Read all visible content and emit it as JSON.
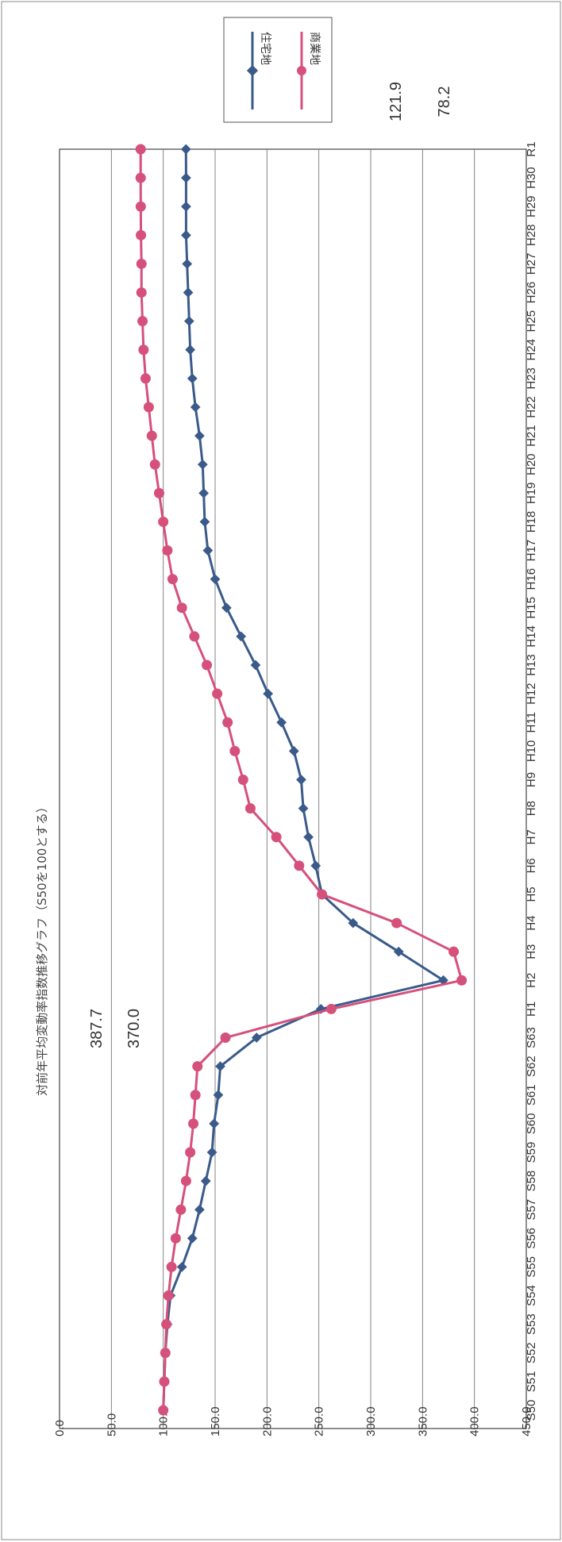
{
  "chart_data": {
    "type": "line",
    "title": "対前年平均変動率指数推移グラフ（S50を100とする）",
    "x": [
      "S50",
      "S51",
      "S52",
      "S53",
      "S54",
      "S55",
      "S56",
      "S57",
      "S58",
      "S59",
      "S60",
      "S61",
      "S62",
      "S63",
      "H1",
      "H2",
      "H3",
      "H4",
      "H5",
      "H6",
      "H7",
      "H8",
      "H9",
      "H10",
      "H11",
      "H12",
      "H13",
      "H14",
      "H15",
      "H16",
      "H17",
      "H18",
      "H19",
      "H20",
      "H21",
      "H22",
      "H23",
      "H24",
      "H25",
      "H26",
      "H27",
      "H28",
      "H29",
      "H30",
      "R1"
    ],
    "ylim": [
      0,
      450
    ],
    "yticks": [
      "0.0",
      "50.0",
      "100.0",
      "150.0",
      "200.0",
      "250.0",
      "300.0",
      "350.0",
      "400.0",
      "450.0"
    ],
    "grid": true,
    "legend_position": "top-right",
    "series": [
      {
        "name": "住宅地",
        "color": "#3a5a8a",
        "marker": "diamond",
        "values": [
          100,
          101,
          102,
          104,
          107,
          118,
          128,
          135,
          141,
          147,
          149,
          153,
          155,
          190,
          252,
          370,
          327,
          283,
          253,
          247,
          240,
          235,
          233,
          226,
          214,
          201,
          189,
          175,
          161,
          150,
          143,
          140,
          139,
          138,
          135,
          131,
          128,
          126,
          125,
          124,
          123,
          122,
          122,
          122,
          121.9
        ]
      },
      {
        "name": "商業地",
        "color": "#d5507a",
        "marker": "circle",
        "values": [
          100,
          101,
          102,
          103,
          105,
          108,
          112,
          117,
          122,
          126,
          129,
          131,
          133,
          160,
          262,
          387.7,
          380,
          325,
          253,
          231,
          209,
          184,
          177,
          169,
          162,
          152,
          142,
          130,
          118,
          109,
          104,
          100,
          96,
          92,
          89,
          86,
          83,
          81,
          80,
          79,
          79,
          78.5,
          78.3,
          78.2,
          78.2
        ]
      }
    ],
    "annotations": [
      "387.7",
      "370.0",
      "121.9",
      "78.2"
    ]
  }
}
